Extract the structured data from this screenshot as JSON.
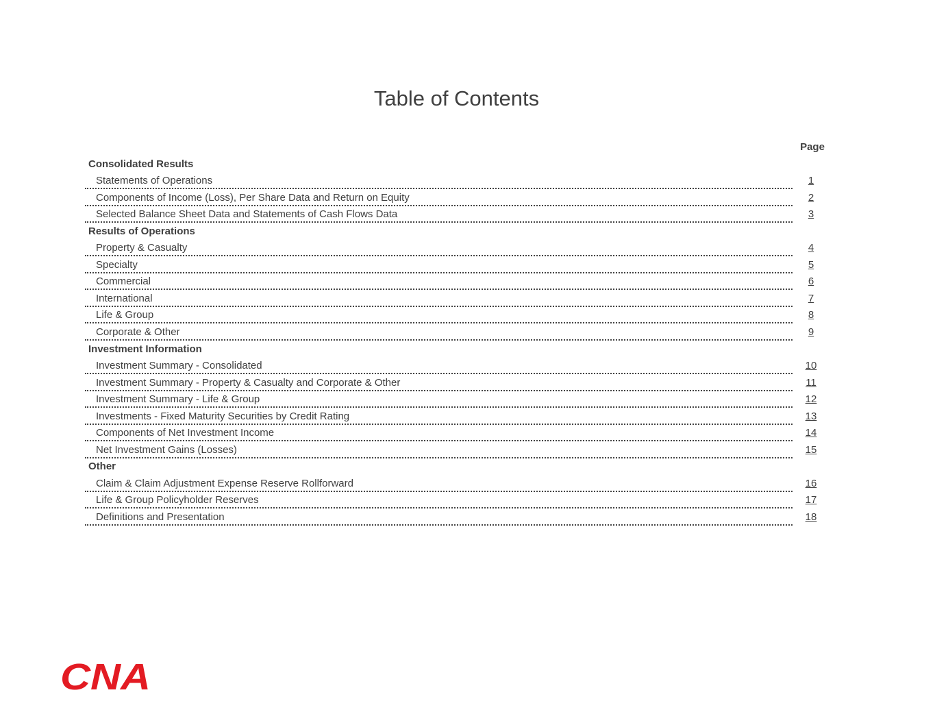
{
  "title": "Table of Contents",
  "page_header": "Page",
  "sections": [
    {
      "title": "Consolidated Results",
      "items": [
        {
          "label": "Statements of Operations",
          "page": "1"
        },
        {
          "label": "Components of Income (Loss), Per Share Data and Return on Equity",
          "page": "2"
        },
        {
          "label": "Selected Balance Sheet Data and Statements of Cash Flows Data",
          "page": "3"
        }
      ]
    },
    {
      "title": "Results of Operations",
      "items": [
        {
          "label": "Property & Casualty",
          "page": "4"
        },
        {
          "label": "Specialty",
          "page": "5"
        },
        {
          "label": "Commercial",
          "page": "6"
        },
        {
          "label": "International",
          "page": "7"
        },
        {
          "label": "Life & Group",
          "page": "8"
        },
        {
          "label": "Corporate & Other",
          "page": "9"
        }
      ]
    },
    {
      "title": "Investment Information",
      "items": [
        {
          "label": "Investment Summary - Consolidated",
          "page": "10"
        },
        {
          "label": "Investment Summary - Property & Casualty and Corporate & Other",
          "page": "11"
        },
        {
          "label": "Investment Summary - Life & Group",
          "page": "12"
        },
        {
          "label": "Investments - Fixed Maturity Securities by Credit Rating",
          "page": "13"
        },
        {
          "label": "Components of Net Investment Income",
          "page": "14"
        },
        {
          "label": "Net Investment Gains (Losses)",
          "page": "15"
        }
      ]
    },
    {
      "title": "Other",
      "items": [
        {
          "label": "Claim & Claim Adjustment Expense Reserve Rollforward",
          "page": "16"
        },
        {
          "label": "Life & Group Policyholder Reserves",
          "page": "17"
        },
        {
          "label": "Definitions and Presentation",
          "page": "18"
        }
      ]
    }
  ],
  "logo": {
    "text": "CNA",
    "color": "#e31b23"
  }
}
